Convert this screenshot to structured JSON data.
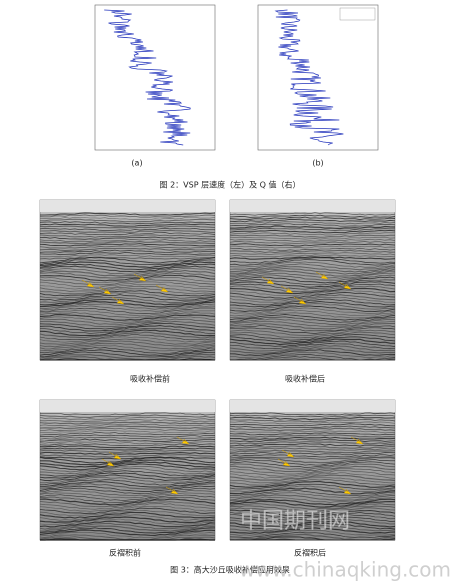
{
  "figure2": {
    "label_a": "(a)",
    "label_b": "(b)",
    "caption": "图 2：VSP 层速度（左）及 Q 值（右）"
  },
  "figure3": {
    "panels": [
      "吸收补偿前",
      "吸收补偿后",
      "反褶积前",
      "反褶积后"
    ],
    "caption": "图 3：高大沙丘吸收补偿应用效果"
  },
  "watermark": {
    "name": "中国期刊网",
    "url": "www.chinaqking.com"
  }
}
